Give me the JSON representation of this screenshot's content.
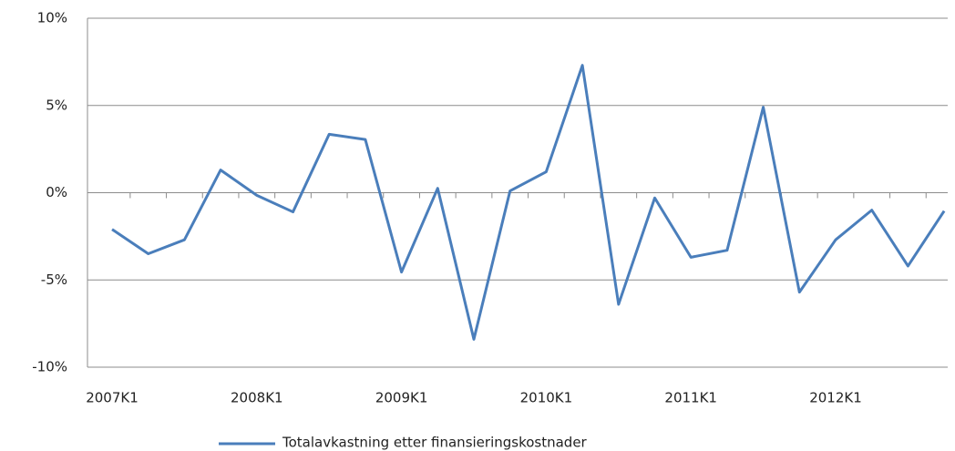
{
  "chart_data": {
    "type": "line",
    "categories": [
      "2007K1",
      null,
      null,
      null,
      "2008K1",
      null,
      null,
      null,
      "2009K1",
      null,
      null,
      null,
      "2010K1",
      null,
      null,
      null,
      "2011K1",
      null,
      null,
      null,
      "2012K1",
      null,
      null,
      null
    ],
    "series": [
      {
        "name": "Totalavkastning etter finansieringskostnader",
        "color": "#4a7ebb",
        "values": [
          -2.1,
          -3.5,
          -2.7,
          1.3,
          -0.15,
          -1.1,
          3.35,
          3.05,
          -4.55,
          0.25,
          -8.4,
          0.1,
          1.2,
          7.3,
          -6.4,
          -0.3,
          -3.7,
          -3.3,
          4.9,
          -5.7,
          -2.7,
          -1.0,
          -4.2,
          -1.05
        ]
      }
    ],
    "ylim": [
      -10,
      10
    ],
    "yticks": [
      {
        "value": -10,
        "label": "-10%"
      },
      {
        "value": -5,
        "label": "-5%"
      },
      {
        "value": 0,
        "label": "0%"
      },
      {
        "value": 5,
        "label": "5%"
      },
      {
        "value": 10,
        "label": "10%"
      }
    ],
    "grid": true,
    "legend": "bottom"
  }
}
